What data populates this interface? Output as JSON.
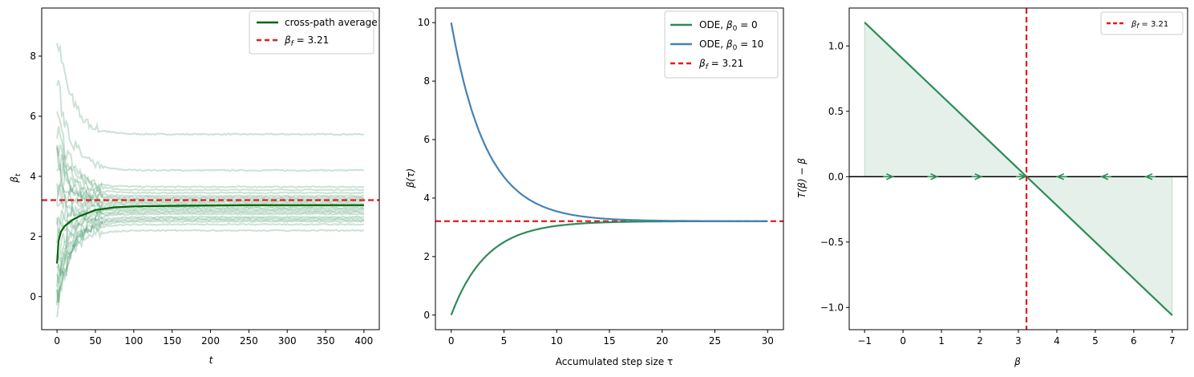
{
  "chart_data": [
    {
      "type": "line",
      "xlabel": "t",
      "ylabel": "β",
      "ylabel_sub": "t",
      "xlim": [
        -20,
        420
      ],
      "ylim": [
        -1.1,
        9.6
      ],
      "xticks": [
        0,
        50,
        100,
        150,
        200,
        250,
        300,
        350,
        400
      ],
      "yticks": [
        0,
        2,
        4,
        6,
        8
      ],
      "colors": {
        "paths": "#2e8b57",
        "average": "#006400",
        "beta_f": "#e31a1c"
      },
      "hline": {
        "name_main": "β",
        "name_sub": "f",
        "name_rest": " = 3.21",
        "y": 3.21
      },
      "average": {
        "name": "cross-path average",
        "x": [
          0,
          2,
          5,
          10,
          20,
          30,
          40,
          50,
          75,
          100,
          150,
          200,
          250,
          300,
          350,
          400
        ],
        "y": [
          1.1,
          1.85,
          2.15,
          2.35,
          2.55,
          2.68,
          2.78,
          2.88,
          2.97,
          3.0,
          3.02,
          3.03,
          3.04,
          3.04,
          3.04,
          3.04
        ]
      },
      "paths": [
        {
          "start": 8.8,
          "end": 5.4
        },
        {
          "start": 7.2,
          "end": 4.2
        },
        {
          "start": 6.0,
          "end": 3.65
        },
        {
          "start": 5.6,
          "end": 3.55
        },
        {
          "start": 5.2,
          "end": 3.45
        },
        {
          "start": 4.9,
          "end": 3.35
        },
        {
          "start": 4.5,
          "end": 3.3
        },
        {
          "start": 4.1,
          "end": 3.25
        },
        {
          "start": 3.8,
          "end": 3.2
        },
        {
          "start": 3.4,
          "end": 3.15
        },
        {
          "start": 3.0,
          "end": 3.1
        },
        {
          "start": 2.6,
          "end": 3.05
        },
        {
          "start": 2.2,
          "end": 3.0
        },
        {
          "start": 1.8,
          "end": 2.95
        },
        {
          "start": 1.4,
          "end": 2.9
        },
        {
          "start": 1.0,
          "end": 2.85
        },
        {
          "start": 0.7,
          "end": 2.8
        },
        {
          "start": 0.4,
          "end": 2.75
        },
        {
          "start": 0.1,
          "end": 2.65
        },
        {
          "start": -0.2,
          "end": 2.6
        },
        {
          "start": -0.4,
          "end": 2.55
        },
        {
          "start": -0.5,
          "end": 2.5
        },
        {
          "start": 0.3,
          "end": 2.4
        },
        {
          "start": -0.1,
          "end": 2.2
        }
      ]
    },
    {
      "type": "line",
      "xlabel": "Accumulated step size τ",
      "ylabel": "β(τ)",
      "xlim": [
        -1.5,
        31.5
      ],
      "ylim": [
        -0.5,
        10.5
      ],
      "xticks": [
        0,
        5,
        10,
        15,
        20,
        25,
        30
      ],
      "yticks": [
        0,
        2,
        4,
        6,
        8,
        10
      ],
      "beta_f": 3.21,
      "tau_max": 30,
      "decay_rate": 0.3,
      "series": [
        {
          "label": "ODE, ",
          "label_math_main": "β",
          "label_math_sub": "0",
          "label_math_rest": " = 0",
          "beta0": 0,
          "color": "#2e8b57"
        },
        {
          "label": "ODE, ",
          "label_math_main": "β",
          "label_math_sub": "0",
          "label_math_rest": " = 10",
          "beta0": 10,
          "color": "#4682b4"
        }
      ],
      "hline": {
        "name_main": "β",
        "name_sub": "f",
        "name_rest": " = 3.21",
        "y": 3.21,
        "color": "#e31a1c"
      }
    },
    {
      "type": "area",
      "xlabel": "β",
      "ylabel": "T(β) − β",
      "xlim": [
        -1.4,
        7.4
      ],
      "ylim": [
        -1.17,
        1.29
      ],
      "xticks": [
        -1,
        0,
        1,
        2,
        3,
        4,
        5,
        6,
        7
      ],
      "yticks": [
        -1.0,
        -0.5,
        0.0,
        0.5,
        1.0
      ],
      "line": {
        "x": [
          -1,
          7
        ],
        "y": [
          1.18,
          -1.06
        ],
        "color": "#2e8b57"
      },
      "fill_color": "#2e8b57",
      "zero_line_color": "#000000",
      "arrows_right_x": [
        -0.35,
        0.8,
        1.95,
        3.1
      ],
      "arrows_left_x": [
        4.1,
        5.25,
        6.4
      ],
      "vline": {
        "name_main": "β",
        "name_sub": "f",
        "name_rest": " = 3.21",
        "x": 3.21,
        "color": "#e31a1c"
      }
    }
  ]
}
